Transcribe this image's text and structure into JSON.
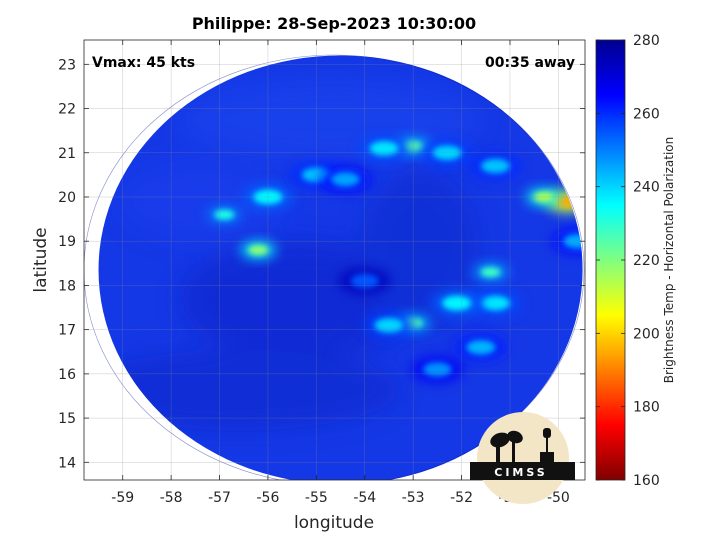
{
  "figure": {
    "title": "Philippe: 28-Sep-2023 10:30:00",
    "annotation_left": "Vmax: 45 kts",
    "annotation_right": "00:35 away",
    "logo_text": "CIMSS"
  },
  "axes": {
    "xlabel": "longitude",
    "ylabel": "latitude",
    "x_ticks": [
      -59,
      -58,
      -57,
      -56,
      -55,
      -54,
      -53,
      -52,
      -51,
      -50
    ],
    "y_ticks": [
      14,
      15,
      16,
      17,
      18,
      19,
      20,
      21,
      22,
      23
    ],
    "xlim": [
      -59.8,
      -49.45
    ],
    "ylim": [
      13.6,
      23.55
    ],
    "grid": true
  },
  "colorbar": {
    "label": "Brightness Temp - Horizontal Polarization",
    "ticks": [
      160,
      180,
      200,
      220,
      240,
      260,
      280
    ],
    "range": [
      160,
      280
    ],
    "colormap": "jet"
  },
  "scan": {
    "center_lon": -54.5,
    "center_lat": 18.35,
    "radius_deg_lon": 5.0,
    "radius_deg_lat": 4.85,
    "background_value": 262
  },
  "chart_data": {
    "type": "heatmap",
    "title": "Philippe: 28-Sep-2023 10:30:00",
    "xlabel": "longitude",
    "ylabel": "latitude",
    "xlim": [
      -59.8,
      -49.45
    ],
    "ylim": [
      13.6,
      23.55
    ],
    "colorbar_label": "Brightness Temp - Horizontal Polarization",
    "value_range": [
      160,
      280
    ],
    "features": [
      {
        "lon": -49.8,
        "lat": 19.9,
        "value": 195
      },
      {
        "lon": -50.3,
        "lat": 20.0,
        "value": 215
      },
      {
        "lon": -53.0,
        "lat": 21.15,
        "value": 225
      },
      {
        "lon": -53.6,
        "lat": 21.1,
        "value": 238
      },
      {
        "lon": -52.3,
        "lat": 21.0,
        "value": 240
      },
      {
        "lon": -51.3,
        "lat": 20.7,
        "value": 242
      },
      {
        "lon": -56.2,
        "lat": 18.8,
        "value": 218
      },
      {
        "lon": -56.9,
        "lat": 19.6,
        "value": 232
      },
      {
        "lon": -56.0,
        "lat": 20.0,
        "value": 236
      },
      {
        "lon": -55.0,
        "lat": 20.5,
        "value": 242
      },
      {
        "lon": -54.4,
        "lat": 20.4,
        "value": 246
      },
      {
        "lon": -51.4,
        "lat": 18.3,
        "value": 228
      },
      {
        "lon": -51.3,
        "lat": 17.6,
        "value": 238
      },
      {
        "lon": -52.1,
        "lat": 17.6,
        "value": 236
      },
      {
        "lon": -53.0,
        "lat": 17.15,
        "value": 226
      },
      {
        "lon": -53.5,
        "lat": 17.1,
        "value": 240
      },
      {
        "lon": -51.6,
        "lat": 16.6,
        "value": 244
      },
      {
        "lon": -52.5,
        "lat": 16.1,
        "value": 248
      },
      {
        "lon": -49.6,
        "lat": 19.0,
        "value": 245
      },
      {
        "lon": -54.0,
        "lat": 18.1,
        "value": 255
      }
    ]
  }
}
